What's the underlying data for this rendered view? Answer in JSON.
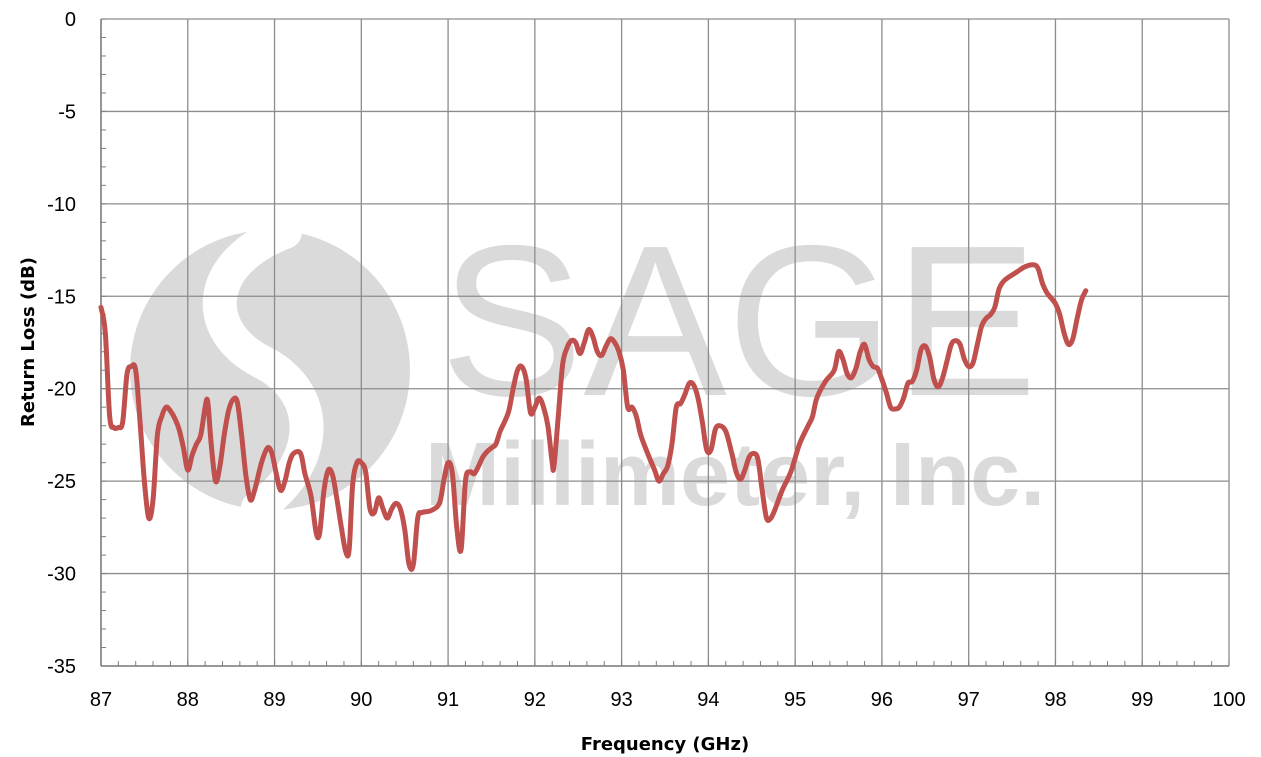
{
  "watermark": {
    "line1": "SAGE",
    "line2": "Millimeter, Inc.",
    "color": "#dcdcdc"
  },
  "chart_data": {
    "type": "line",
    "title": "",
    "xlabel": "Frequency (GHz)",
    "ylabel": "Return Loss (dB)",
    "xlim": [
      87,
      100
    ],
    "ylim": [
      -35,
      0
    ],
    "x_ticks": [
      87,
      88,
      89,
      90,
      91,
      92,
      93,
      94,
      95,
      96,
      97,
      98,
      99,
      100
    ],
    "y_ticks": [
      0,
      -5,
      -10,
      -15,
      -20,
      -25,
      -30,
      -35
    ],
    "x_minor_step": 0.2,
    "y_minor_step": 1,
    "grid": true,
    "legend": "none",
    "series": [
      {
        "color": "#c0504d",
        "points": [
          [
            87.0,
            -15.6
          ],
          [
            87.05,
            -17.0
          ],
          [
            87.1,
            -21.5
          ],
          [
            87.15,
            -22.1
          ],
          [
            87.2,
            -22.1
          ],
          [
            87.25,
            -21.8
          ],
          [
            87.3,
            -19.2
          ],
          [
            87.35,
            -18.8
          ],
          [
            87.4,
            -19.0
          ],
          [
            87.45,
            -21.8
          ],
          [
            87.5,
            -25.0
          ],
          [
            87.55,
            -27.0
          ],
          [
            87.6,
            -26.0
          ],
          [
            87.65,
            -22.5
          ],
          [
            87.7,
            -21.5
          ],
          [
            87.75,
            -21.0
          ],
          [
            87.8,
            -21.2
          ],
          [
            87.85,
            -21.6
          ],
          [
            87.9,
            -22.2
          ],
          [
            87.95,
            -23.2
          ],
          [
            88.0,
            -24.4
          ],
          [
            88.05,
            -23.6
          ],
          [
            88.1,
            -23.0
          ],
          [
            88.15,
            -22.5
          ],
          [
            88.2,
            -21.0
          ],
          [
            88.23,
            -20.7
          ],
          [
            88.27,
            -23.0
          ],
          [
            88.32,
            -25.0
          ],
          [
            88.37,
            -24.2
          ],
          [
            88.42,
            -22.5
          ],
          [
            88.47,
            -21.2
          ],
          [
            88.52,
            -20.6
          ],
          [
            88.57,
            -20.7
          ],
          [
            88.62,
            -22.5
          ],
          [
            88.67,
            -24.7
          ],
          [
            88.72,
            -26.0
          ],
          [
            88.77,
            -25.5
          ],
          [
            88.85,
            -24.0
          ],
          [
            88.92,
            -23.2
          ],
          [
            88.97,
            -23.5
          ],
          [
            89.02,
            -24.6
          ],
          [
            89.07,
            -25.5
          ],
          [
            89.12,
            -25.0
          ],
          [
            89.17,
            -24.0
          ],
          [
            89.22,
            -23.5
          ],
          [
            89.3,
            -23.5
          ],
          [
            89.35,
            -24.6
          ],
          [
            89.42,
            -25.8
          ],
          [
            89.48,
            -27.8
          ],
          [
            89.52,
            -27.8
          ],
          [
            89.57,
            -25.5
          ],
          [
            89.62,
            -24.4
          ],
          [
            89.67,
            -24.7
          ],
          [
            89.72,
            -26.0
          ],
          [
            89.77,
            -27.5
          ],
          [
            89.82,
            -28.8
          ],
          [
            89.86,
            -28.7
          ],
          [
            89.9,
            -25.2
          ],
          [
            89.95,
            -24.0
          ],
          [
            90.0,
            -24.0
          ],
          [
            90.05,
            -24.5
          ],
          [
            90.1,
            -26.5
          ],
          [
            90.15,
            -26.7
          ],
          [
            90.2,
            -25.9
          ],
          [
            90.25,
            -26.5
          ],
          [
            90.3,
            -27.0
          ],
          [
            90.35,
            -26.5
          ],
          [
            90.4,
            -26.2
          ],
          [
            90.45,
            -26.5
          ],
          [
            90.5,
            -27.6
          ],
          [
            90.55,
            -29.5
          ],
          [
            90.6,
            -29.5
          ],
          [
            90.65,
            -27.0
          ],
          [
            90.7,
            -26.7
          ],
          [
            90.8,
            -26.6
          ],
          [
            90.9,
            -26.2
          ],
          [
            90.95,
            -25.0
          ],
          [
            91.0,
            -24.0
          ],
          [
            91.05,
            -24.6
          ],
          [
            91.1,
            -27.5
          ],
          [
            91.15,
            -28.7
          ],
          [
            91.2,
            -25.0
          ],
          [
            91.25,
            -24.5
          ],
          [
            91.3,
            -24.6
          ],
          [
            91.35,
            -24.2
          ],
          [
            91.4,
            -23.7
          ],
          [
            91.45,
            -23.4
          ],
          [
            91.5,
            -23.2
          ],
          [
            91.55,
            -23.0
          ],
          [
            91.6,
            -22.3
          ],
          [
            91.65,
            -21.8
          ],
          [
            91.7,
            -21.2
          ],
          [
            91.75,
            -20.0
          ],
          [
            91.8,
            -19.0
          ],
          [
            91.85,
            -18.8
          ],
          [
            91.9,
            -19.5
          ],
          [
            91.95,
            -21.3
          ],
          [
            92.0,
            -21.0
          ],
          [
            92.05,
            -20.5
          ],
          [
            92.1,
            -21.0
          ],
          [
            92.15,
            -22.0
          ],
          [
            92.2,
            -24.0
          ],
          [
            92.22,
            -24.2
          ],
          [
            92.27,
            -21.5
          ],
          [
            92.32,
            -18.7
          ],
          [
            92.37,
            -17.8
          ],
          [
            92.42,
            -17.4
          ],
          [
            92.47,
            -17.5
          ],
          [
            92.52,
            -18.1
          ],
          [
            92.57,
            -17.5
          ],
          [
            92.62,
            -16.8
          ],
          [
            92.67,
            -17.2
          ],
          [
            92.72,
            -18.0
          ],
          [
            92.77,
            -18.2
          ],
          [
            92.82,
            -17.7
          ],
          [
            92.87,
            -17.3
          ],
          [
            92.92,
            -17.5
          ],
          [
            92.97,
            -18.0
          ],
          [
            93.02,
            -19.0
          ],
          [
            93.07,
            -21.0
          ],
          [
            93.12,
            -21.0
          ],
          [
            93.17,
            -21.5
          ],
          [
            93.22,
            -22.5
          ],
          [
            93.3,
            -23.5
          ],
          [
            93.38,
            -24.4
          ],
          [
            93.43,
            -25.0
          ],
          [
            93.48,
            -24.6
          ],
          [
            93.53,
            -24.2
          ],
          [
            93.58,
            -23.0
          ],
          [
            93.63,
            -21.0
          ],
          [
            93.68,
            -20.8
          ],
          [
            93.73,
            -20.3
          ],
          [
            93.78,
            -19.7
          ],
          [
            93.83,
            -19.8
          ],
          [
            93.88,
            -20.5
          ],
          [
            93.93,
            -21.8
          ],
          [
            93.98,
            -23.3
          ],
          [
            94.03,
            -23.3
          ],
          [
            94.08,
            -22.2
          ],
          [
            94.13,
            -22.0
          ],
          [
            94.2,
            -22.3
          ],
          [
            94.27,
            -23.5
          ],
          [
            94.32,
            -24.5
          ],
          [
            94.37,
            -24.9
          ],
          [
            94.42,
            -24.4
          ],
          [
            94.47,
            -23.7
          ],
          [
            94.52,
            -23.5
          ],
          [
            94.57,
            -23.8
          ],
          [
            94.62,
            -25.5
          ],
          [
            94.67,
            -27.0
          ],
          [
            94.72,
            -27.0
          ],
          [
            94.77,
            -26.5
          ],
          [
            94.85,
            -25.5
          ],
          [
            94.95,
            -24.5
          ],
          [
            95.05,
            -23.0
          ],
          [
            95.15,
            -22.0
          ],
          [
            95.2,
            -21.5
          ],
          [
            95.25,
            -20.5
          ],
          [
            95.35,
            -19.6
          ],
          [
            95.45,
            -19.0
          ],
          [
            95.5,
            -18.0
          ],
          [
            95.55,
            -18.4
          ],
          [
            95.6,
            -19.2
          ],
          [
            95.65,
            -19.4
          ],
          [
            95.7,
            -18.9
          ],
          [
            95.75,
            -18.0
          ],
          [
            95.8,
            -17.6
          ],
          [
            95.85,
            -18.4
          ],
          [
            95.9,
            -18.8
          ],
          [
            95.95,
            -18.9
          ],
          [
            96.0,
            -19.5
          ],
          [
            96.05,
            -20.2
          ],
          [
            96.1,
            -21.0
          ],
          [
            96.15,
            -21.1
          ],
          [
            96.2,
            -21.0
          ],
          [
            96.25,
            -20.5
          ],
          [
            96.3,
            -19.7
          ],
          [
            96.35,
            -19.6
          ],
          [
            96.4,
            -19.0
          ],
          [
            96.45,
            -17.9
          ],
          [
            96.5,
            -17.7
          ],
          [
            96.55,
            -18.3
          ],
          [
            96.6,
            -19.5
          ],
          [
            96.65,
            -19.9
          ],
          [
            96.7,
            -19.4
          ],
          [
            96.75,
            -18.5
          ],
          [
            96.8,
            -17.6
          ],
          [
            96.85,
            -17.4
          ],
          [
            96.9,
            -17.6
          ],
          [
            96.95,
            -18.4
          ],
          [
            97.0,
            -18.8
          ],
          [
            97.05,
            -18.6
          ],
          [
            97.1,
            -17.6
          ],
          [
            97.15,
            -16.6
          ],
          [
            97.2,
            -16.2
          ],
          [
            97.25,
            -16.0
          ],
          [
            97.3,
            -15.6
          ],
          [
            97.35,
            -14.6
          ],
          [
            97.4,
            -14.2
          ],
          [
            97.45,
            -14.0
          ],
          [
            97.55,
            -13.7
          ],
          [
            97.65,
            -13.4
          ],
          [
            97.75,
            -13.3
          ],
          [
            97.8,
            -13.5
          ],
          [
            97.85,
            -14.3
          ],
          [
            97.9,
            -14.8
          ],
          [
            97.95,
            -15.1
          ],
          [
            98.0,
            -15.4
          ],
          [
            98.05,
            -16.0
          ],
          [
            98.1,
            -17.0
          ],
          [
            98.15,
            -17.6
          ],
          [
            98.2,
            -17.3
          ],
          [
            98.25,
            -16.2
          ],
          [
            98.3,
            -15.2
          ],
          [
            98.35,
            -14.7
          ]
        ]
      }
    ]
  }
}
